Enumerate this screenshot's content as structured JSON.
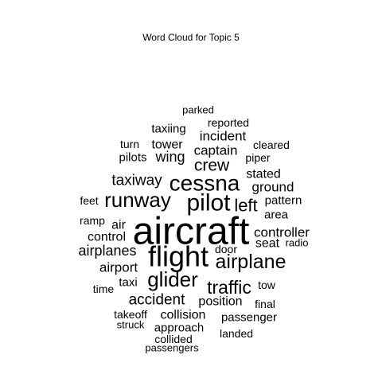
{
  "chart_data": {
    "type": "wordcloud",
    "title": "Word Cloud for Topic 5",
    "words": [
      {
        "text": "aircraft",
        "weight": 48
      },
      {
        "text": "flight",
        "weight": 36
      },
      {
        "text": "pilot",
        "weight": 30
      },
      {
        "text": "cessna",
        "weight": 28
      },
      {
        "text": "runway",
        "weight": 26
      },
      {
        "text": "glider",
        "weight": 26
      },
      {
        "text": "airplane",
        "weight": 25
      },
      {
        "text": "traffic",
        "weight": 23
      },
      {
        "text": "left",
        "weight": 22
      },
      {
        "text": "crew",
        "weight": 21
      },
      {
        "text": "accident",
        "weight": 19
      },
      {
        "text": "taxiway",
        "weight": 19
      },
      {
        "text": "wing",
        "weight": 18
      },
      {
        "text": "airplanes",
        "weight": 18
      },
      {
        "text": "captain",
        "weight": 17
      },
      {
        "text": "incident",
        "weight": 17
      },
      {
        "text": "ground",
        "weight": 17
      },
      {
        "text": "airport",
        "weight": 17
      },
      {
        "text": "controller",
        "weight": 17
      },
      {
        "text": "position",
        "weight": 16
      },
      {
        "text": "collision",
        "weight": 16
      },
      {
        "text": "tower",
        "weight": 16
      },
      {
        "text": "seat",
        "weight": 16
      },
      {
        "text": "control",
        "weight": 16
      },
      {
        "text": "air",
        "weight": 16
      },
      {
        "text": "stated",
        "weight": 16
      },
      {
        "text": "approach",
        "weight": 15
      },
      {
        "text": "taxi",
        "weight": 15
      },
      {
        "text": "pilots",
        "weight": 15
      },
      {
        "text": "area",
        "weight": 15
      },
      {
        "text": "pattern",
        "weight": 15
      },
      {
        "text": "taxiing",
        "weight": 15
      },
      {
        "text": "passenger",
        "weight": 15
      },
      {
        "text": "turn",
        "weight": 14
      },
      {
        "text": "door",
        "weight": 14
      },
      {
        "text": "piper",
        "weight": 14
      },
      {
        "text": "tow",
        "weight": 14
      },
      {
        "text": "cleared",
        "weight": 14
      },
      {
        "text": "reported",
        "weight": 14
      },
      {
        "text": "takeoff",
        "weight": 14
      },
      {
        "text": "landed",
        "weight": 14
      },
      {
        "text": "collided",
        "weight": 14
      },
      {
        "text": "feet",
        "weight": 14
      },
      {
        "text": "time",
        "weight": 14
      },
      {
        "text": "final",
        "weight": 14
      },
      {
        "text": "ramp",
        "weight": 14
      },
      {
        "text": "parked",
        "weight": 13
      },
      {
        "text": "radio",
        "weight": 13
      },
      {
        "text": "struck",
        "weight": 13
      },
      {
        "text": "passengers",
        "weight": 13
      }
    ]
  }
}
